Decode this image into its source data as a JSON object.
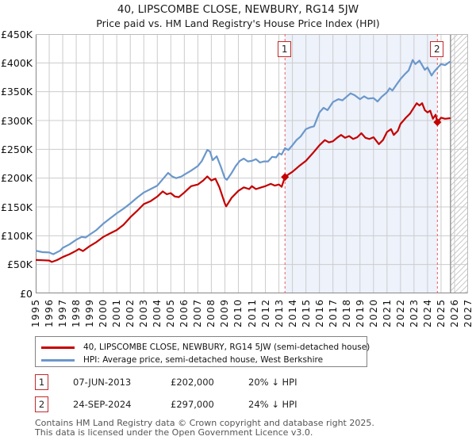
{
  "title": "40, LIPSCOMBE CLOSE, NEWBURY, RG14 5JW",
  "subtitle": "Price paid vs. HM Land Registry's House Price Index (HPI)",
  "legend": [
    {
      "label": "40, LIPSCOMBE CLOSE, NEWBURY, RG14 5JW (semi-detached house)",
      "color": "#c40000"
    },
    {
      "label": "HPI: Average price, semi-detached house, West Berkshire",
      "color": "#6b97cb"
    }
  ],
  "transactions": [
    {
      "num": "1",
      "date": "07-JUN-2013",
      "price": "£202,000",
      "hpi_delta": "20% ↓ HPI"
    },
    {
      "num": "2",
      "date": "24-SEP-2024",
      "price": "£297,000",
      "hpi_delta": "24% ↓ HPI"
    }
  ],
  "footer": {
    "line1": "Contains HM Land Registry data © Crown copyright and database right 2025.",
    "line2": "This data is licensed under the Open Government Licence v3.0."
  },
  "colors": {
    "price_line": "#c40000",
    "hpi_line": "#6b97cb",
    "grid": "#cccccc",
    "axis_dark": "#888888",
    "axis_light": "#bbbbbb",
    "shade": "#edf2fb",
    "hatch": "#c9c9c9",
    "hatch_edge": "#999999",
    "sale_dash": "#f05a5a",
    "marker_fill": "#c40000",
    "marker_box_border": "#c22a2a"
  },
  "chart_data": {
    "type": "line",
    "x_axis": {
      "min": 1995,
      "max": 2027,
      "tick_years": [
        1995,
        1996,
        1997,
        1998,
        1999,
        2000,
        2001,
        2002,
        2003,
        2004,
        2005,
        2006,
        2007,
        2008,
        2009,
        2010,
        2011,
        2012,
        2013,
        2014,
        2015,
        2016,
        2017,
        2018,
        2019,
        2020,
        2021,
        2022,
        2023,
        2024,
        2025,
        2026,
        2027
      ]
    },
    "y_axis": {
      "min": 0,
      "max": 450,
      "units": "GBP thousands",
      "tick_step": 50,
      "tick_labels": [
        "£0",
        "£50K",
        "£100K",
        "£150K",
        "£200K",
        "£250K",
        "£300K",
        "£350K",
        "£400K",
        "£450K"
      ]
    },
    "shaded_span": [
      2013.45,
      2024.73
    ],
    "hatch_span": [
      2025.7,
      2027
    ],
    "markers": [
      {
        "label": "1",
        "year": 2013.45,
        "value_k": 202
      },
      {
        "label": "2",
        "year": 2024.73,
        "value_k": 297
      }
    ],
    "series": [
      {
        "name": "hpi",
        "color": "#6b97cb",
        "points": [
          [
            1995.0,
            74
          ],
          [
            1995.5,
            71.5
          ],
          [
            1996.0,
            71
          ],
          [
            1996.3,
            68
          ],
          [
            1996.8,
            74
          ],
          [
            1997.0,
            79
          ],
          [
            1997.5,
            85
          ],
          [
            1998.0,
            93
          ],
          [
            1998.4,
            98
          ],
          [
            1998.7,
            97
          ],
          [
            1999.0,
            102
          ],
          [
            1999.5,
            110
          ],
          [
            2000.0,
            121
          ],
          [
            2000.5,
            130
          ],
          [
            2001.0,
            139
          ],
          [
            2001.5,
            147
          ],
          [
            2002.0,
            156
          ],
          [
            2002.5,
            166
          ],
          [
            2003.0,
            175
          ],
          [
            2003.5,
            181
          ],
          [
            2004.0,
            187
          ],
          [
            2004.4,
            198
          ],
          [
            2004.8,
            209
          ],
          [
            2005.1,
            203
          ],
          [
            2005.4,
            200
          ],
          [
            2005.8,
            203
          ],
          [
            2006.0,
            206
          ],
          [
            2006.5,
            213
          ],
          [
            2007.0,
            221
          ],
          [
            2007.3,
            230
          ],
          [
            2007.7,
            249
          ],
          [
            2007.9,
            246
          ],
          [
            2008.1,
            231
          ],
          [
            2008.4,
            238
          ],
          [
            2008.7,
            220
          ],
          [
            2009.0,
            200
          ],
          [
            2009.15,
            197
          ],
          [
            2009.5,
            209
          ],
          [
            2009.8,
            221
          ],
          [
            2010.1,
            230
          ],
          [
            2010.4,
            234
          ],
          [
            2010.7,
            229
          ],
          [
            2011.0,
            230
          ],
          [
            2011.3,
            233
          ],
          [
            2011.6,
            227
          ],
          [
            2011.9,
            229
          ],
          [
            2012.2,
            229
          ],
          [
            2012.5,
            237
          ],
          [
            2012.8,
            236
          ],
          [
            2013.0,
            243
          ],
          [
            2013.2,
            241
          ],
          [
            2013.45,
            252
          ],
          [
            2013.7,
            249
          ],
          [
            2014.0,
            257
          ],
          [
            2014.3,
            266
          ],
          [
            2014.6,
            272
          ],
          [
            2015.0,
            285
          ],
          [
            2015.3,
            288
          ],
          [
            2015.6,
            290
          ],
          [
            2016.0,
            314
          ],
          [
            2016.3,
            322
          ],
          [
            2016.6,
            318
          ],
          [
            2017.0,
            332
          ],
          [
            2017.4,
            337
          ],
          [
            2017.7,
            335
          ],
          [
            2018.0,
            341
          ],
          [
            2018.3,
            347
          ],
          [
            2018.6,
            344
          ],
          [
            2019.0,
            337
          ],
          [
            2019.3,
            342
          ],
          [
            2019.6,
            338
          ],
          [
            2020.0,
            339
          ],
          [
            2020.3,
            333
          ],
          [
            2020.6,
            341
          ],
          [
            2021.0,
            349
          ],
          [
            2021.2,
            356
          ],
          [
            2021.4,
            352
          ],
          [
            2021.7,
            362
          ],
          [
            2022.0,
            372
          ],
          [
            2022.3,
            380
          ],
          [
            2022.6,
            387
          ],
          [
            2022.9,
            405
          ],
          [
            2023.1,
            398
          ],
          [
            2023.4,
            404
          ],
          [
            2023.6,
            396
          ],
          [
            2023.8,
            388
          ],
          [
            2024.0,
            392
          ],
          [
            2024.3,
            378
          ],
          [
            2024.5,
            385
          ],
          [
            2024.73,
            391
          ],
          [
            2025.0,
            398
          ],
          [
            2025.3,
            396
          ],
          [
            2025.65,
            402
          ]
        ]
      },
      {
        "name": "price-paid",
        "color": "#c40000",
        "points": [
          [
            1995.0,
            58
          ],
          [
            1995.5,
            57.5
          ],
          [
            1996.0,
            57
          ],
          [
            1996.2,
            54.5
          ],
          [
            1996.6,
            58
          ],
          [
            1997.0,
            63
          ],
          [
            1997.5,
            68
          ],
          [
            1998.0,
            74
          ],
          [
            1998.2,
            77
          ],
          [
            1998.5,
            73.5
          ],
          [
            1999.0,
            82
          ],
          [
            1999.5,
            89
          ],
          [
            2000.0,
            98
          ],
          [
            2000.5,
            104
          ],
          [
            2001.0,
            110
          ],
          [
            2001.5,
            119
          ],
          [
            2002.0,
            132
          ],
          [
            2002.5,
            143
          ],
          [
            2003.0,
            155
          ],
          [
            2003.5,
            160
          ],
          [
            2004.0,
            168
          ],
          [
            2004.4,
            177
          ],
          [
            2004.7,
            172
          ],
          [
            2005.0,
            174
          ],
          [
            2005.3,
            168
          ],
          [
            2005.6,
            167
          ],
          [
            2006.0,
            175
          ],
          [
            2006.5,
            186
          ],
          [
            2007.0,
            189
          ],
          [
            2007.4,
            196
          ],
          [
            2007.7,
            203
          ],
          [
            2008.0,
            196
          ],
          [
            2008.3,
            199
          ],
          [
            2008.6,
            184
          ],
          [
            2009.0,
            156
          ],
          [
            2009.1,
            151
          ],
          [
            2009.5,
            166
          ],
          [
            2010.0,
            178
          ],
          [
            2010.4,
            184
          ],
          [
            2010.8,
            181
          ],
          [
            2011.0,
            186
          ],
          [
            2011.3,
            181
          ],
          [
            2011.7,
            184
          ],
          [
            2012.0,
            186
          ],
          [
            2012.4,
            190
          ],
          [
            2012.7,
            187
          ],
          [
            2013.0,
            189
          ],
          [
            2013.2,
            185
          ],
          [
            2013.45,
            202
          ],
          [
            2013.8,
            208
          ],
          [
            2014.0,
            211
          ],
          [
            2014.5,
            221
          ],
          [
            2015.0,
            230
          ],
          [
            2015.5,
            243
          ],
          [
            2016.0,
            257
          ],
          [
            2016.4,
            266
          ],
          [
            2016.7,
            262
          ],
          [
            2017.0,
            264
          ],
          [
            2017.3,
            270
          ],
          [
            2017.6,
            275
          ],
          [
            2017.9,
            270
          ],
          [
            2018.2,
            273
          ],
          [
            2018.5,
            268
          ],
          [
            2018.8,
            271
          ],
          [
            2019.1,
            278
          ],
          [
            2019.4,
            270
          ],
          [
            2019.7,
            268
          ],
          [
            2020.0,
            271
          ],
          [
            2020.4,
            259
          ],
          [
            2020.7,
            266
          ],
          [
            2021.0,
            280
          ],
          [
            2021.3,
            285
          ],
          [
            2021.5,
            275
          ],
          [
            2021.8,
            282
          ],
          [
            2022.0,
            294
          ],
          [
            2022.4,
            305
          ],
          [
            2022.7,
            312
          ],
          [
            2023.0,
            323
          ],
          [
            2023.2,
            330
          ],
          [
            2023.4,
            326
          ],
          [
            2023.6,
            330
          ],
          [
            2023.8,
            318
          ],
          [
            2024.0,
            314
          ],
          [
            2024.2,
            317
          ],
          [
            2024.4,
            303
          ],
          [
            2024.6,
            310
          ],
          [
            2024.73,
            297
          ],
          [
            2025.0,
            305
          ],
          [
            2025.3,
            303
          ],
          [
            2025.65,
            304
          ]
        ]
      }
    ]
  }
}
